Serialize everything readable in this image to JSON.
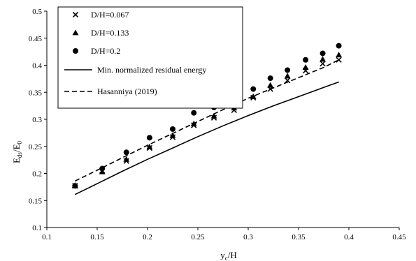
{
  "chart_data": {
    "type": "scatter",
    "xlabel": {
      "main": "y",
      "sub": "c",
      "tail": "/H"
    },
    "ylabel": {
      "main": "E",
      "sub": "ds",
      "mid": "/E",
      "sub2": "0"
    },
    "xlim": [
      0.1,
      0.45
    ],
    "ylim": [
      0.1,
      0.5
    ],
    "xticks": [
      "0.1",
      "0.15",
      "0.2",
      "0.25",
      "0.3",
      "0.35",
      "0.4",
      "0.45"
    ],
    "yticks": [
      "0.1",
      "0.15",
      "0.2",
      "0.25",
      "0.3",
      "0.35",
      "0.4",
      "0.45",
      "0.5"
    ],
    "grid": false,
    "legend_position": "top-left",
    "series": [
      {
        "name": "D/H=0.067",
        "marker": "x",
        "points": [
          [
            0.128,
            0.177
          ],
          [
            0.155,
            0.205
          ],
          [
            0.179,
            0.223
          ],
          [
            0.202,
            0.247
          ],
          [
            0.225,
            0.267
          ],
          [
            0.246,
            0.289
          ],
          [
            0.266,
            0.303
          ],
          [
            0.286,
            0.317
          ],
          [
            0.305,
            0.34
          ],
          [
            0.322,
            0.356
          ],
          [
            0.339,
            0.372
          ],
          [
            0.357,
            0.39
          ],
          [
            0.374,
            0.403
          ],
          [
            0.39,
            0.41
          ]
        ]
      },
      {
        "name": "D/H=0.133",
        "marker": "triangle",
        "points": [
          [
            0.128,
            0.178
          ],
          [
            0.155,
            0.203
          ],
          [
            0.179,
            0.226
          ],
          [
            0.202,
            0.249
          ],
          [
            0.225,
            0.27
          ],
          [
            0.246,
            0.292
          ],
          [
            0.266,
            0.306
          ],
          [
            0.286,
            0.321
          ],
          [
            0.305,
            0.342
          ],
          [
            0.322,
            0.363
          ],
          [
            0.339,
            0.38
          ],
          [
            0.357,
            0.396
          ],
          [
            0.374,
            0.411
          ],
          [
            0.39,
            0.419
          ]
        ]
      },
      {
        "name": "D/H=0.2",
        "marker": "circle",
        "points": [
          [
            0.128,
            0.177
          ],
          [
            0.155,
            0.209
          ],
          [
            0.179,
            0.239
          ],
          [
            0.202,
            0.266
          ],
          [
            0.225,
            0.282
          ],
          [
            0.246,
            0.312
          ],
          [
            0.266,
            0.322
          ],
          [
            0.286,
            0.352
          ],
          [
            0.305,
            0.356
          ],
          [
            0.322,
            0.376
          ],
          [
            0.339,
            0.391
          ],
          [
            0.357,
            0.41
          ],
          [
            0.374,
            0.422
          ],
          [
            0.39,
            0.436
          ]
        ]
      },
      {
        "name": "Min. normalized residual energy",
        "line": "solid",
        "points": [
          [
            0.128,
            0.161
          ],
          [
            0.15,
            0.181
          ],
          [
            0.175,
            0.204
          ],
          [
            0.2,
            0.226
          ],
          [
            0.225,
            0.247
          ],
          [
            0.25,
            0.268
          ],
          [
            0.275,
            0.288
          ],
          [
            0.3,
            0.307
          ],
          [
            0.325,
            0.325
          ],
          [
            0.35,
            0.342
          ],
          [
            0.375,
            0.359
          ],
          [
            0.39,
            0.369
          ]
        ]
      },
      {
        "name": "Hasanniya (2019)",
        "line": "dashed",
        "points": [
          [
            0.128,
            0.186
          ],
          [
            0.15,
            0.206
          ],
          [
            0.175,
            0.229
          ],
          [
            0.2,
            0.252
          ],
          [
            0.225,
            0.274
          ],
          [
            0.25,
            0.296
          ],
          [
            0.275,
            0.318
          ],
          [
            0.3,
            0.339
          ],
          [
            0.325,
            0.358
          ],
          [
            0.35,
            0.377
          ],
          [
            0.375,
            0.396
          ],
          [
            0.39,
            0.41
          ]
        ]
      }
    ]
  }
}
